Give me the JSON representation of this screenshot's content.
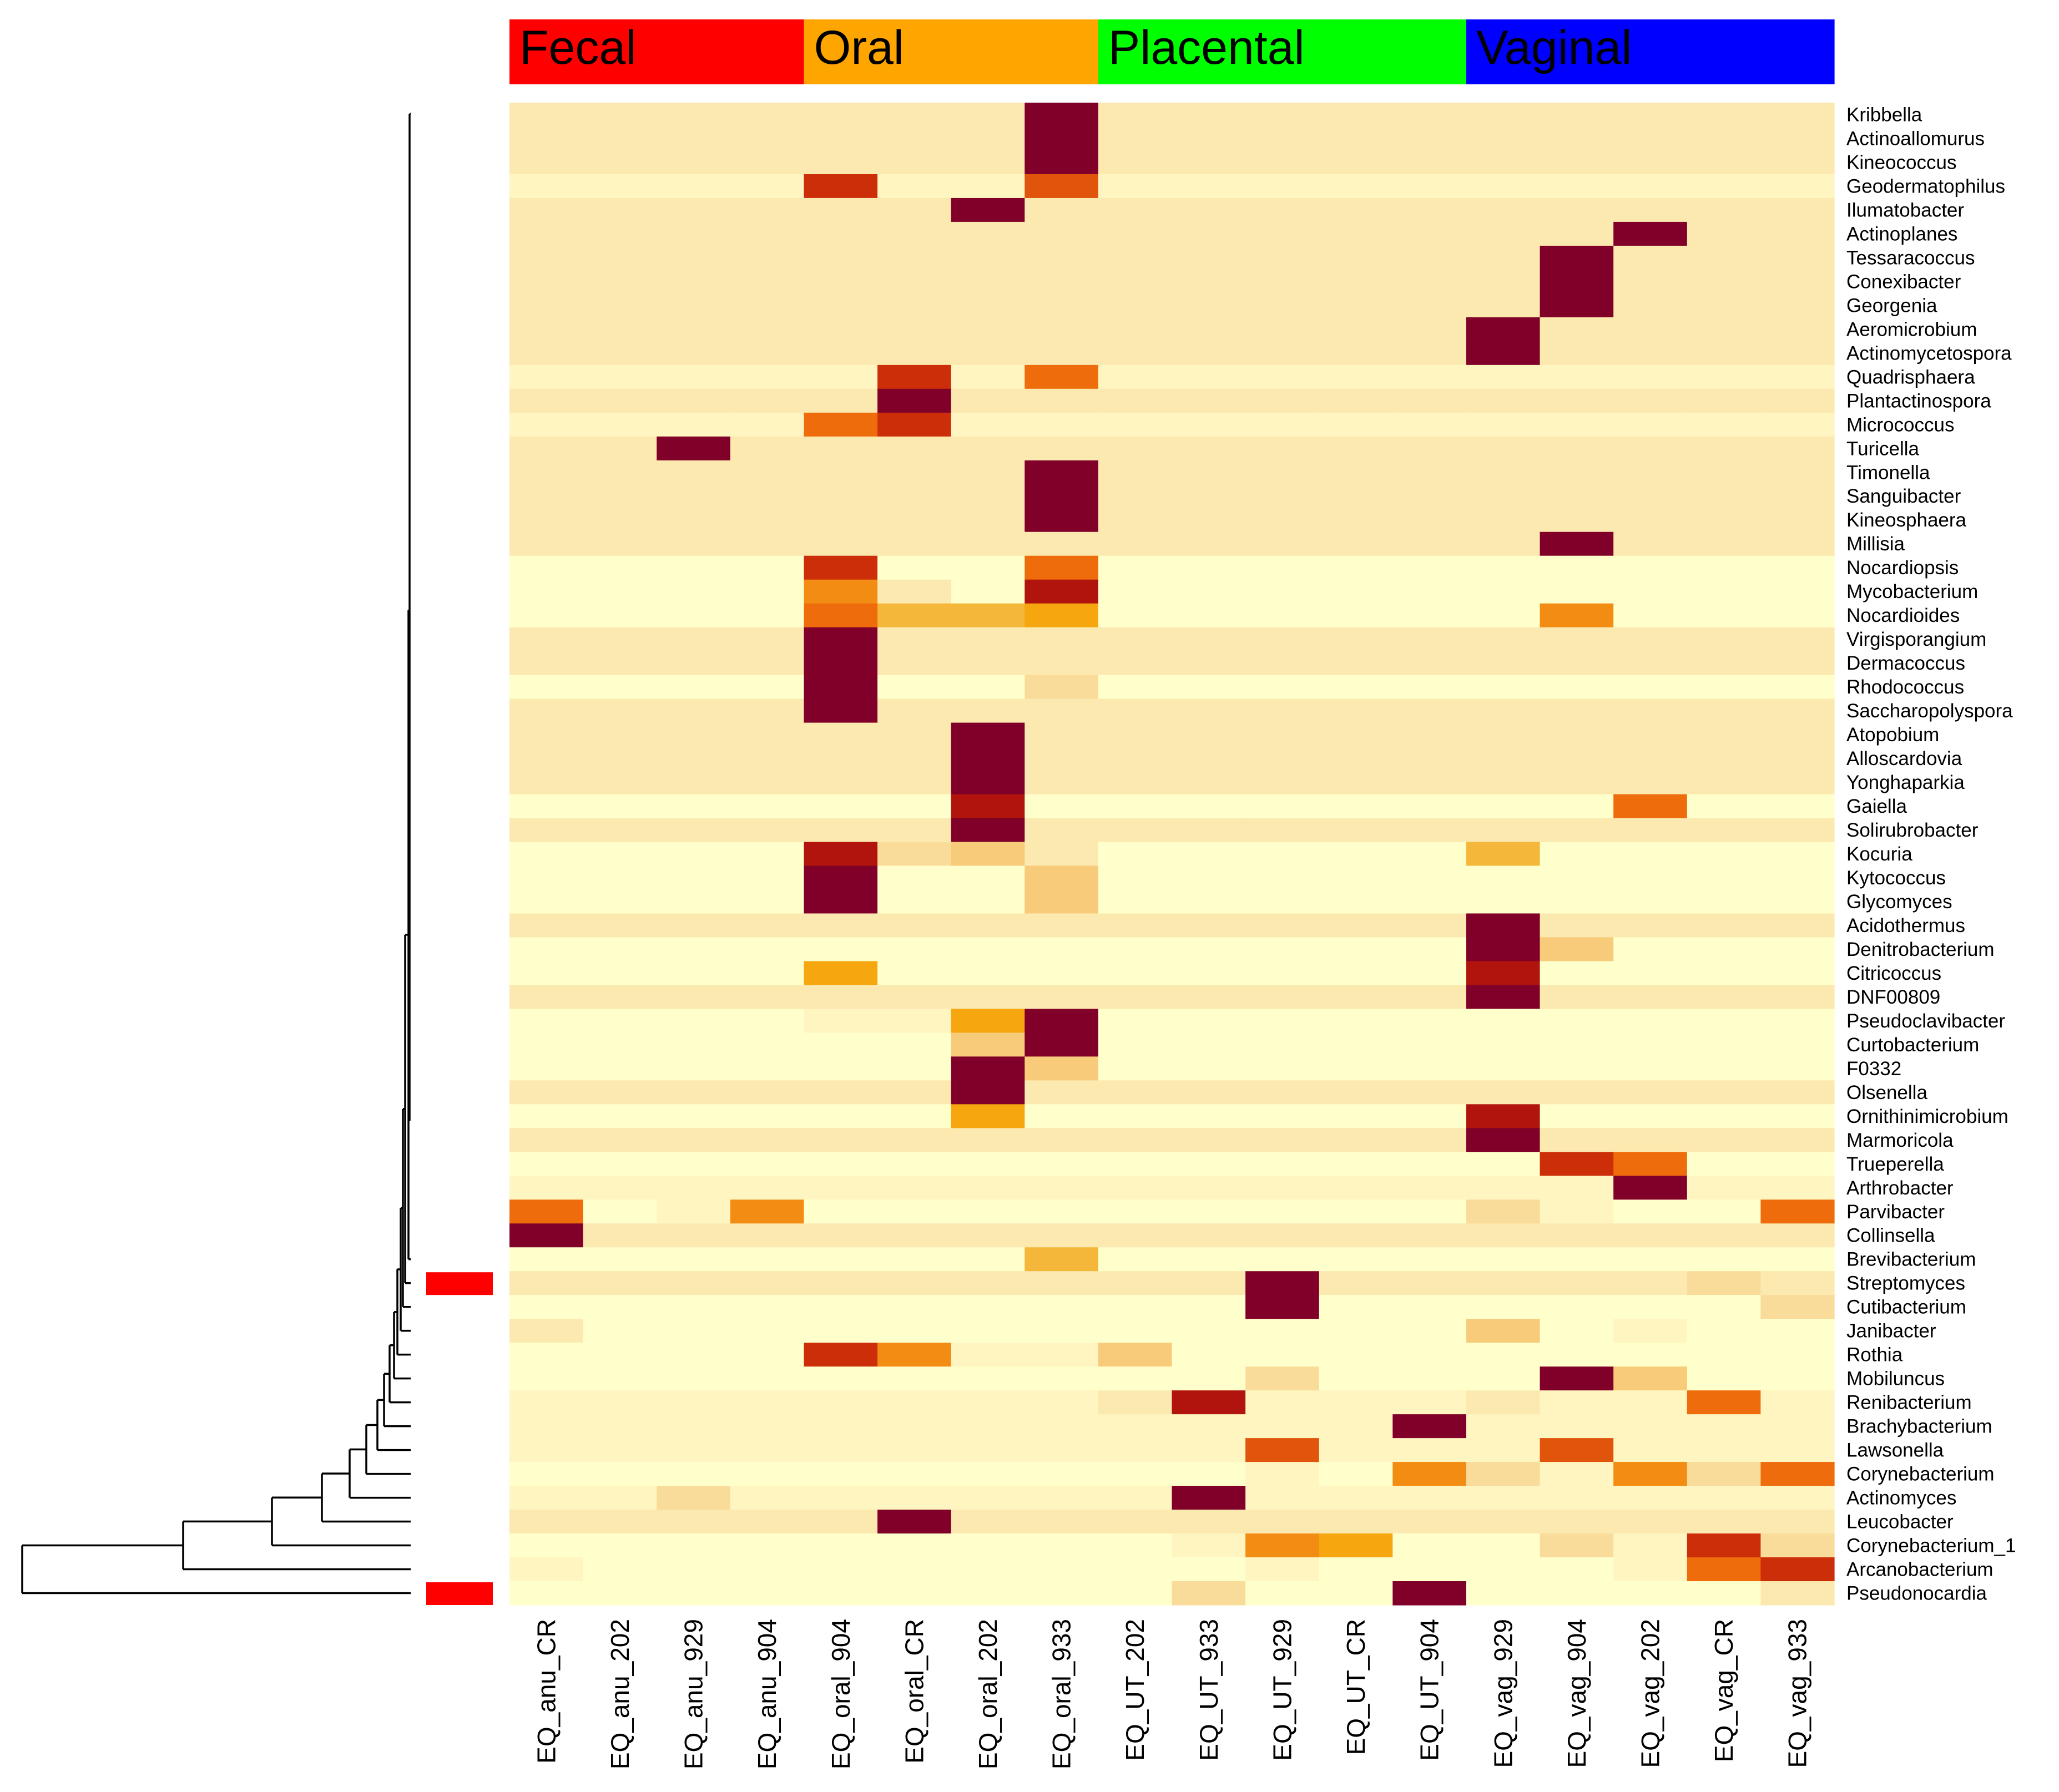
{
  "chart_data": {
    "type": "heatmap",
    "title": "",
    "groups": [
      {
        "label": "Fecal",
        "color": "#ff0000",
        "count": 4
      },
      {
        "label": "Oral",
        "color": "#ffa500",
        "count": 4
      },
      {
        "label": "Placental",
        "color": "#00ff00",
        "count": 5
      },
      {
        "label": "Vaginal",
        "color": "#0000ff",
        "count": 5
      }
    ],
    "columns": [
      "EQ_anu_CR",
      "EQ_anu_202",
      "EQ_anu_929",
      "EQ_anu_904",
      "EQ_oral_904",
      "EQ_oral_CR",
      "EQ_oral_202",
      "EQ_oral_933",
      "EQ_UT_202",
      "EQ_UT_933",
      "EQ_UT_929",
      "EQ_UT_CR",
      "EQ_UT_904",
      "EQ_vag_929",
      "EQ_vag_904",
      "EQ_vag_202",
      "EQ_vag_CR",
      "EQ_vag_933"
    ],
    "rows": [
      "Kribbella",
      "Actinoallomurus",
      "Kineococcus",
      "Geodermatophilus",
      "Ilumatobacter",
      "Actinoplanes",
      "Tessaracoccus",
      "Conexibacter",
      "Georgenia",
      "Aeromicrobium",
      "Actinomycetospora",
      "Quadrisphaera",
      "Plantactinospora",
      "Micrococcus",
      "Turicella",
      "Timonella",
      "Sanguibacter",
      "Kineosphaera",
      "Millisia",
      "Nocardiopsis",
      "Mycobacterium",
      "Nocardioides",
      "Virgisporangium",
      "Dermacoccus",
      "Rhodococcus",
      "Saccharopolyspora",
      "Atopobium",
      "Alloscardovia",
      "Yonghaparkia",
      "Gaiella",
      "Solirubrobacter",
      "Kocuria",
      "Kytococcus",
      "Glycomyces",
      "Acidothermus",
      "Denitrobacterium",
      "Citricoccus",
      "DNF00809",
      "Pseudoclavibacter",
      "Curtobacterium",
      "F0332",
      "Olsenella",
      "Ornithinimicrobium",
      "Marmoricola",
      "Trueperella",
      "Arthrobacter",
      "Parvibacter",
      "Collinsella",
      "Brevibacterium",
      "Streptomyces",
      "Cutibacterium",
      "Janibacter",
      "Rothia",
      "Mobiluncus",
      "Renibacterium",
      "Brachybacterium",
      "Lawsonella",
      "Corynebacterium",
      "Actinomyces",
      "Leucobacter",
      "Corynebacterium_1",
      "Arcanobacterium",
      "Pseudonocardia"
    ],
    "highlighted_rows": [
      "Streptomyces",
      "Pseudonocardia"
    ],
    "highlight_color": "#ff0000",
    "colorscale": [
      "#ffffcc",
      "#fff5c0",
      "#fce9b0",
      "#fadc9a",
      "#f7cb7a",
      "#f5b73a",
      "#f6a60e",
      "#f28c12",
      "#ee6c0c",
      "#e0540c",
      "#cc2e0a",
      "#b0140c",
      "#80002a"
    ],
    "value_range": [
      0,
      12
    ],
    "row_base": [
      2,
      2,
      2,
      1,
      2,
      2,
      2,
      2,
      2,
      2,
      2,
      1,
      2,
      1,
      2,
      2,
      2,
      2,
      2,
      0,
      0,
      0,
      2,
      2,
      0,
      2,
      2,
      2,
      2,
      0,
      2,
      0,
      0,
      0,
      2,
      0,
      0,
      2,
      0,
      0,
      0,
      2,
      0,
      2,
      0,
      1,
      0,
      2,
      0,
      2,
      0,
      0,
      0,
      0,
      1,
      1,
      1,
      0,
      1,
      2,
      0,
      0,
      0
    ],
    "cells": [
      [
        0,
        7,
        12
      ],
      [
        1,
        7,
        12
      ],
      [
        2,
        7,
        12
      ],
      [
        3,
        4,
        10
      ],
      [
        3,
        7,
        9
      ],
      [
        4,
        6,
        12
      ],
      [
        5,
        15,
        12
      ],
      [
        6,
        14,
        12
      ],
      [
        7,
        14,
        12
      ],
      [
        8,
        14,
        12
      ],
      [
        9,
        13,
        12
      ],
      [
        10,
        13,
        12
      ],
      [
        11,
        5,
        10
      ],
      [
        11,
        7,
        8
      ],
      [
        12,
        5,
        12
      ],
      [
        13,
        4,
        8
      ],
      [
        13,
        5,
        10
      ],
      [
        14,
        2,
        12
      ],
      [
        15,
        7,
        12
      ],
      [
        16,
        7,
        12
      ],
      [
        17,
        7,
        12
      ],
      [
        18,
        14,
        12
      ],
      [
        19,
        4,
        10
      ],
      [
        19,
        7,
        8
      ],
      [
        20,
        4,
        7
      ],
      [
        20,
        5,
        2
      ],
      [
        20,
        7,
        11
      ],
      [
        21,
        4,
        8
      ],
      [
        21,
        5,
        5
      ],
      [
        21,
        6,
        5
      ],
      [
        21,
        7,
        6
      ],
      [
        21,
        14,
        7
      ],
      [
        22,
        4,
        12
      ],
      [
        23,
        4,
        12
      ],
      [
        24,
        4,
        12
      ],
      [
        24,
        7,
        3
      ],
      [
        25,
        4,
        12
      ],
      [
        26,
        6,
        12
      ],
      [
        27,
        6,
        12
      ],
      [
        28,
        6,
        12
      ],
      [
        29,
        6,
        11
      ],
      [
        29,
        15,
        8
      ],
      [
        30,
        6,
        12
      ],
      [
        31,
        4,
        11
      ],
      [
        31,
        5,
        3
      ],
      [
        31,
        6,
        4
      ],
      [
        31,
        7,
        2
      ],
      [
        31,
        13,
        5
      ],
      [
        32,
        4,
        12
      ],
      [
        32,
        7,
        4
      ],
      [
        33,
        4,
        12
      ],
      [
        33,
        7,
        4
      ],
      [
        34,
        13,
        12
      ],
      [
        35,
        13,
        12
      ],
      [
        35,
        14,
        4
      ],
      [
        36,
        4,
        6
      ],
      [
        36,
        13,
        11
      ],
      [
        37,
        13,
        12
      ],
      [
        38,
        4,
        1
      ],
      [
        38,
        5,
        1
      ],
      [
        38,
        6,
        6
      ],
      [
        38,
        7,
        12
      ],
      [
        39,
        6,
        4
      ],
      [
        39,
        7,
        12
      ],
      [
        40,
        6,
        12
      ],
      [
        40,
        7,
        4
      ],
      [
        41,
        6,
        12
      ],
      [
        42,
        6,
        6
      ],
      [
        42,
        13,
        11
      ],
      [
        43,
        13,
        12
      ],
      [
        44,
        14,
        10
      ],
      [
        44,
        15,
        8
      ],
      [
        45,
        15,
        12
      ],
      [
        46,
        0,
        8
      ],
      [
        46,
        2,
        1
      ],
      [
        46,
        3,
        7
      ],
      [
        46,
        13,
        3
      ],
      [
        46,
        14,
        1
      ],
      [
        46,
        17,
        8
      ],
      [
        47,
        0,
        12
      ],
      [
        48,
        7,
        5
      ],
      [
        49,
        10,
        12
      ],
      [
        49,
        16,
        3
      ],
      [
        49,
        17,
        2
      ],
      [
        50,
        10,
        12
      ],
      [
        50,
        17,
        3
      ],
      [
        51,
        0,
        2
      ],
      [
        51,
        13,
        4
      ],
      [
        51,
        15,
        1
      ],
      [
        52,
        4,
        10
      ],
      [
        52,
        5,
        7
      ],
      [
        52,
        6,
        1
      ],
      [
        52,
        7,
        1
      ],
      [
        52,
        8,
        4
      ],
      [
        53,
        10,
        3
      ],
      [
        53,
        14,
        12
      ],
      [
        53,
        15,
        4
      ],
      [
        54,
        8,
        2
      ],
      [
        54,
        9,
        11
      ],
      [
        54,
        13,
        2
      ],
      [
        54,
        16,
        8
      ],
      [
        55,
        12,
        12
      ],
      [
        56,
        0,
        1
      ],
      [
        56,
        10,
        9
      ],
      [
        56,
        14,
        9
      ],
      [
        56,
        15,
        1
      ],
      [
        56,
        17,
        1
      ],
      [
        57,
        10,
        1
      ],
      [
        57,
        12,
        7
      ],
      [
        57,
        13,
        3
      ],
      [
        57,
        14,
        1
      ],
      [
        57,
        15,
        7
      ],
      [
        57,
        16,
        3
      ],
      [
        57,
        17,
        8
      ],
      [
        58,
        0,
        1
      ],
      [
        58,
        2,
        3
      ],
      [
        58,
        4,
        1
      ],
      [
        58,
        6,
        1
      ],
      [
        58,
        7,
        1
      ],
      [
        58,
        9,
        12
      ],
      [
        59,
        5,
        12
      ],
      [
        60,
        9,
        1
      ],
      [
        60,
        10,
        7
      ],
      [
        60,
        11,
        6
      ],
      [
        60,
        14,
        3
      ],
      [
        60,
        15,
        1
      ],
      [
        60,
        16,
        10
      ],
      [
        60,
        17,
        3
      ],
      [
        61,
        0,
        1
      ],
      [
        61,
        10,
        1
      ],
      [
        61,
        15,
        1
      ],
      [
        61,
        16,
        8
      ],
      [
        61,
        17,
        10
      ],
      [
        62,
        9,
        3
      ],
      [
        62,
        12,
        12
      ],
      [
        62,
        17,
        2
      ]
    ]
  }
}
